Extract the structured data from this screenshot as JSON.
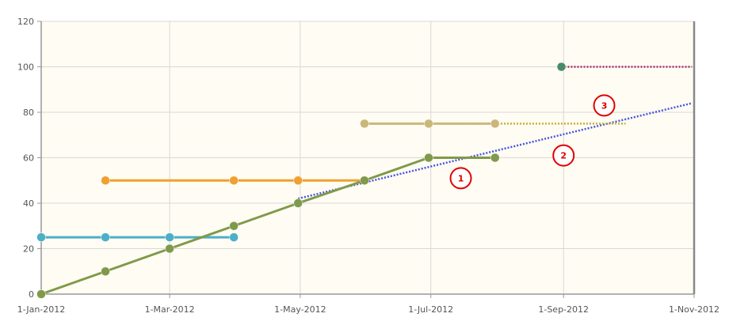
{
  "chart_data": {
    "type": "line",
    "title": "",
    "xlabel": "",
    "ylabel": "",
    "x_axis": {
      "type": "date",
      "range": [
        "2012-01-01",
        "2012-11-01"
      ],
      "tick_values": [
        "2012-01-01",
        "2012-03-01",
        "2012-05-01",
        "2012-07-01",
        "2012-09-01",
        "2012-11-01"
      ],
      "tick_labels": [
        "1-Jan-2012",
        "1-Mar-2012",
        "1-May-2012",
        "1-Jul-2012",
        "1-Sep-2012",
        "1-Nov-2012"
      ]
    },
    "y_axis": {
      "range": [
        0,
        120
      ],
      "ticks": [
        0,
        20,
        40,
        60,
        80,
        100,
        120
      ],
      "tick_labels": [
        "0",
        "20",
        "40",
        "60",
        "80",
        "100",
        "120"
      ]
    },
    "grid": true,
    "background": "#fffcf3",
    "legend": null,
    "series": [
      {
        "color": "#4bafc8",
        "line_style": "solid",
        "points": [
          [
            "2012-01-01",
            25
          ],
          [
            "2012-01-31",
            25
          ],
          [
            "2012-03-01",
            25
          ],
          [
            "2012-03-31",
            25
          ]
        ]
      },
      {
        "color": "#f0a030",
        "line_style": "solid",
        "points": [
          [
            "2012-01-31",
            50
          ],
          [
            "2012-03-31",
            50
          ],
          [
            "2012-04-30",
            50
          ],
          [
            "2012-05-31",
            50
          ]
        ]
      },
      {
        "color": "#7f9a4a",
        "line_style": "solid",
        "points": [
          [
            "2012-01-01",
            0
          ],
          [
            "2012-01-31",
            10
          ],
          [
            "2012-03-01",
            20
          ],
          [
            "2012-03-31",
            30
          ],
          [
            "2012-04-30",
            40
          ],
          [
            "2012-05-31",
            50
          ],
          [
            "2012-06-30",
            60
          ],
          [
            "2012-07-31",
            60
          ]
        ]
      },
      {
        "color": "#cbb77a",
        "line_style": "solid",
        "points": [
          [
            "2012-05-31",
            75
          ],
          [
            "2012-06-30",
            75
          ],
          [
            "2012-07-31",
            75
          ]
        ]
      },
      {
        "color": "#4a8a6a",
        "line_style": "solid",
        "points": [
          [
            "2012-08-31",
            100
          ]
        ]
      }
    ],
    "trend_lines": [
      {
        "color": "#4455dd",
        "line_style": "dotted",
        "points": [
          [
            "2012-04-30",
            42
          ],
          [
            "2012-10-31",
            84
          ]
        ]
      },
      {
        "color": "#c8b030",
        "line_style": "dotted",
        "points": [
          [
            "2012-05-31",
            75
          ],
          [
            "2012-09-30",
            75
          ]
        ]
      },
      {
        "color": "#a0306a",
        "line_style": "dotted",
        "points": [
          [
            "2012-08-31",
            100
          ],
          [
            "2012-10-31",
            100
          ]
        ]
      }
    ],
    "annotations": [
      {
        "label": "1",
        "x": "2012-07-15",
        "y": 51
      },
      {
        "label": "2",
        "x": "2012-09-01",
        "y": 61
      },
      {
        "label": "3",
        "x": "2012-09-20",
        "y": 83
      }
    ],
    "colors": {
      "grid": "#d8d8d8",
      "axis": "#999999",
      "callout": "#e00000"
    }
  }
}
